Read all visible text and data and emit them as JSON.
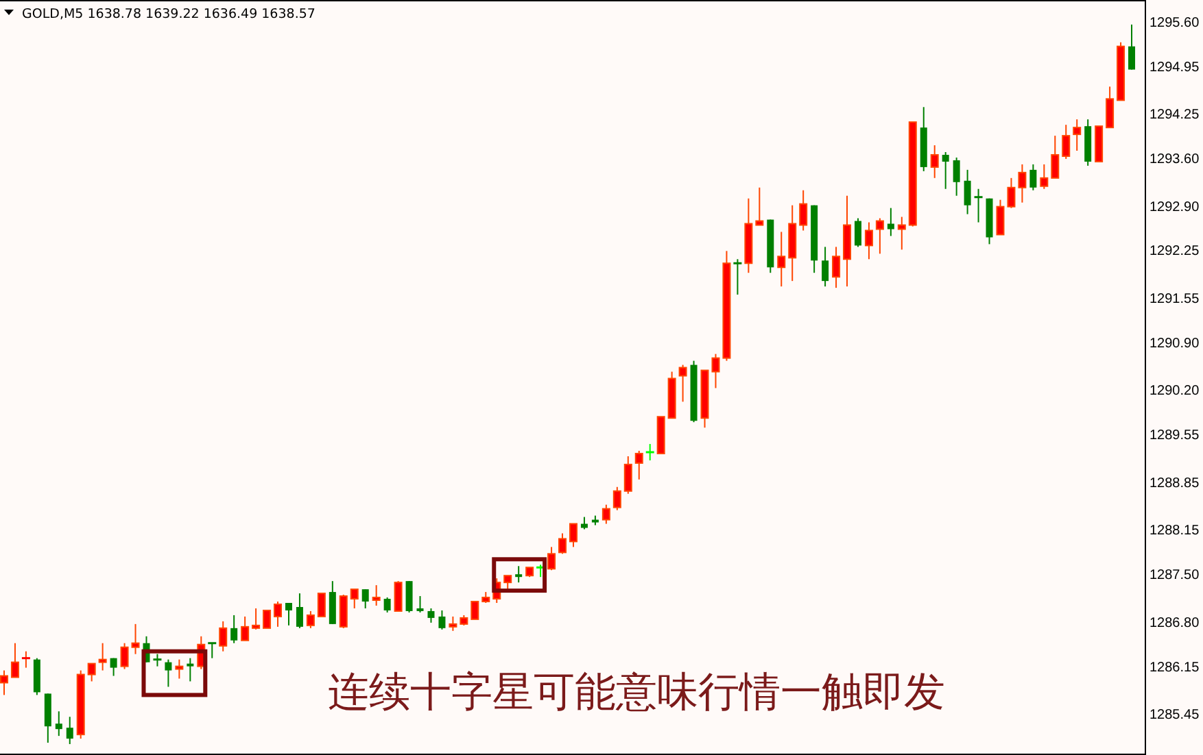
{
  "chart_data": {
    "type": "candlestick",
    "title": "GOLD,M5 1638.78 1639.22 1636.49 1638.57",
    "annotations": [
      "连续十字星可能意味行情一触即发"
    ],
    "tick_labels": "y",
    "ylim": [
      1284.87,
      1295.94
    ],
    "yticks": [
      {
        "value": 1295.6,
        "label": "1295.60"
      },
      {
        "value": 1294.95,
        "label": "1294.95"
      },
      {
        "value": 1294.25,
        "label": "1294.25"
      },
      {
        "value": 1293.6,
        "label": "1293.60"
      },
      {
        "value": 1292.9,
        "label": "1292.90"
      },
      {
        "value": 1292.25,
        "label": "1292.25"
      },
      {
        "value": 1291.55,
        "label": "1291.55"
      },
      {
        "value": 1290.9,
        "label": "1290.90"
      },
      {
        "value": 1290.2,
        "label": "1290.20"
      },
      {
        "value": 1289.55,
        "label": "1289.55"
      },
      {
        "value": 1288.85,
        "label": "1288.85"
      },
      {
        "value": 1288.15,
        "label": "1288.15"
      },
      {
        "value": 1287.5,
        "label": "1287.50"
      },
      {
        "value": 1286.8,
        "label": "1286.80"
      },
      {
        "value": 1286.15,
        "label": "1286.15"
      },
      {
        "value": 1285.45,
        "label": "1285.45"
      }
    ],
    "categories": [
      null,
      null,
      null,
      null,
      null,
      null,
      null,
      null,
      null,
      null,
      null,
      null,
      null,
      null,
      null,
      null,
      null,
      null,
      null,
      null,
      null,
      null,
      null,
      null,
      null,
      null,
      null,
      null,
      null,
      null,
      null,
      null,
      null,
      null,
      null,
      null,
      null,
      null,
      null,
      null,
      null,
      null,
      null,
      null,
      null,
      null,
      null,
      null,
      null,
      null,
      null,
      null,
      null,
      null,
      null,
      null,
      null,
      null,
      null,
      null,
      null,
      null,
      null,
      null,
      null,
      null,
      null,
      null,
      null,
      null,
      null,
      null,
      null,
      null,
      null,
      null,
      null,
      null,
      null,
      null,
      null,
      null,
      null,
      null,
      null,
      null,
      null,
      null,
      null,
      null,
      null,
      null,
      null,
      null,
      null,
      null,
      null,
      null,
      null,
      null,
      null,
      null,
      null,
      null
    ],
    "ohlc": [
      [
        1285.93,
        1286.11,
        1285.75,
        1286.03
      ],
      [
        1286.01,
        1286.51,
        1286.01,
        1286.23
      ],
      [
        1286.27,
        1286.39,
        1286.15,
        1286.29
      ],
      [
        1286.27,
        1286.29,
        1285.75,
        1285.79
      ],
      [
        1285.77,
        1285.77,
        1285.05,
        1285.29
      ],
      [
        1285.33,
        1285.51,
        1285.15,
        1285.25
      ],
      [
        1285.27,
        1285.43,
        1285.03,
        1285.11
      ],
      [
        1285.17,
        1286.11,
        1285.11,
        1286.05
      ],
      [
        1286.05,
        1286.21,
        1285.95,
        1286.21
      ],
      [
        1286.23,
        1286.51,
        1286.11,
        1286.27
      ],
      [
        1286.29,
        1286.29,
        1286.03,
        1286.15
      ],
      [
        1286.17,
        1286.51,
        1286.13,
        1286.45
      ],
      [
        1286.45,
        1286.79,
        1286.35,
        1286.51
      ],
      [
        1286.51,
        1286.61,
        1286.23,
        1286.23
      ],
      [
        1286.27,
        1286.35,
        1286.17,
        1286.25
      ],
      [
        1286.23,
        1286.27,
        1285.87,
        1286.11
      ],
      [
        1286.13,
        1286.27,
        1285.99,
        1286.17
      ],
      [
        1286.21,
        1286.29,
        1285.95,
        1286.17
      ],
      [
        1286.17,
        1286.61,
        1286.13,
        1286.49
      ],
      [
        1286.51,
        1286.51,
        1286.29,
        1286.49
      ],
      [
        1286.47,
        1286.83,
        1286.39,
        1286.73
      ],
      [
        1286.73,
        1286.92,
        1286.51,
        1286.55
      ],
      [
        1286.55,
        1286.9,
        1286.55,
        1286.75
      ],
      [
        1286.73,
        1287.02,
        1286.71,
        1286.77
      ],
      [
        1286.73,
        1286.99,
        1286.73,
        1286.99
      ],
      [
        1286.9,
        1287.12,
        1286.75,
        1287.08
      ],
      [
        1287.1,
        1287.1,
        1286.77,
        1286.99
      ],
      [
        1287.04,
        1287.24,
        1286.73,
        1286.75
      ],
      [
        1286.77,
        1286.98,
        1286.73,
        1286.92
      ],
      [
        1286.9,
        1287.24,
        1286.9,
        1287.24
      ],
      [
        1287.26,
        1287.42,
        1286.79,
        1286.79
      ],
      [
        1286.75,
        1287.22,
        1286.73,
        1287.2
      ],
      [
        1287.16,
        1287.3,
        1287.02,
        1287.3
      ],
      [
        1287.3,
        1287.3,
        1287.02,
        1287.12
      ],
      [
        1287.14,
        1287.36,
        1287.06,
        1287.18
      ],
      [
        1287.16,
        1287.18,
        1286.96,
        1286.99
      ],
      [
        1286.98,
        1287.42,
        1286.98,
        1287.4
      ],
      [
        1287.42,
        1287.42,
        1286.96,
        1286.98
      ],
      [
        1287.02,
        1287.2,
        1286.96,
        1286.98
      ],
      [
        1286.98,
        1287.02,
        1286.81,
        1286.88
      ],
      [
        1286.9,
        1286.99,
        1286.71,
        1286.73
      ],
      [
        1286.75,
        1286.9,
        1286.69,
        1286.79
      ],
      [
        1286.79,
        1286.92,
        1286.77,
        1286.88
      ],
      [
        1286.86,
        1287.12,
        1286.86,
        1287.12
      ],
      [
        1287.12,
        1287.26,
        1287.1,
        1287.18
      ],
      [
        1287.16,
        1287.46,
        1287.1,
        1287.4
      ],
      [
        1287.4,
        1287.5,
        1287.3,
        1287.5
      ],
      [
        1287.52,
        1287.64,
        1287.4,
        1287.48
      ],
      [
        1287.5,
        1287.62,
        1287.48,
        1287.62
      ],
      [
        1287.62,
        1287.66,
        1287.48,
        1287.62
      ],
      [
        1287.6,
        1287.92,
        1287.58,
        1287.82
      ],
      [
        1287.84,
        1288.12,
        1287.82,
        1288.04
      ],
      [
        1288.0,
        1288.26,
        1287.92,
        1288.26
      ],
      [
        1288.26,
        1288.36,
        1288.18,
        1288.2
      ],
      [
        1288.32,
        1288.38,
        1288.24,
        1288.28
      ],
      [
        1288.32,
        1288.54,
        1288.26,
        1288.48
      ],
      [
        1288.5,
        1288.8,
        1288.46,
        1288.74
      ],
      [
        1288.74,
        1289.25,
        1288.7,
        1289.13
      ],
      [
        1289.15,
        1289.33,
        1288.91,
        1289.29
      ],
      [
        1289.31,
        1289.43,
        1289.19,
        1289.31
      ],
      [
        1289.29,
        1289.83,
        1289.29,
        1289.83
      ],
      [
        1289.81,
        1290.49,
        1289.81,
        1290.39
      ],
      [
        1290.43,
        1290.59,
        1290.05,
        1290.55
      ],
      [
        1290.59,
        1290.65,
        1289.75,
        1289.77
      ],
      [
        1289.81,
        1290.51,
        1289.67,
        1290.51
      ],
      [
        1290.49,
        1290.75,
        1290.25,
        1290.69
      ],
      [
        1290.69,
        1292.26,
        1290.65,
        1292.08
      ],
      [
        1292.08,
        1292.14,
        1291.62,
        1292.06
      ],
      [
        1292.08,
        1293.03,
        1291.94,
        1292.66
      ],
      [
        1292.64,
        1293.19,
        1292.64,
        1292.7
      ],
      [
        1292.72,
        1292.72,
        1291.94,
        1292.02
      ],
      [
        1292.02,
        1292.54,
        1291.74,
        1292.18
      ],
      [
        1292.16,
        1292.93,
        1291.82,
        1292.66
      ],
      [
        1292.64,
        1293.15,
        1292.56,
        1292.95
      ],
      [
        1292.93,
        1292.93,
        1291.94,
        1292.12
      ],
      [
        1292.12,
        1292.32,
        1291.74,
        1291.82
      ],
      [
        1291.88,
        1292.32,
        1291.72,
        1292.18
      ],
      [
        1292.14,
        1293.07,
        1291.74,
        1292.64
      ],
      [
        1292.7,
        1292.74,
        1292.32,
        1292.34
      ],
      [
        1292.34,
        1292.68,
        1292.14,
        1292.56
      ],
      [
        1292.58,
        1292.74,
        1292.22,
        1292.7
      ],
      [
        1292.66,
        1292.89,
        1292.48,
        1292.58
      ],
      [
        1292.58,
        1292.76,
        1292.28,
        1292.64
      ],
      [
        1292.64,
        1294.15,
        1292.62,
        1294.15
      ],
      [
        1294.07,
        1294.37,
        1293.43,
        1293.49
      ],
      [
        1293.49,
        1293.81,
        1293.33,
        1293.67
      ],
      [
        1293.67,
        1293.71,
        1293.17,
        1293.57
      ],
      [
        1293.59,
        1293.63,
        1293.07,
        1293.27
      ],
      [
        1293.29,
        1293.45,
        1292.8,
        1292.93
      ],
      [
        1293.05,
        1293.17,
        1292.68,
        1293.03
      ],
      [
        1293.03,
        1293.03,
        1292.36,
        1292.46
      ],
      [
        1292.5,
        1293.01,
        1292.5,
        1292.91
      ],
      [
        1292.91,
        1293.33,
        1292.89,
        1293.19
      ],
      [
        1293.19,
        1293.53,
        1292.97,
        1293.41
      ],
      [
        1293.45,
        1293.53,
        1293.15,
        1293.19
      ],
      [
        1293.21,
        1293.53,
        1293.17,
        1293.33
      ],
      [
        1293.33,
        1293.95,
        1293.33,
        1293.67
      ],
      [
        1293.65,
        1294.11,
        1293.61,
        1293.95
      ],
      [
        1293.97,
        1294.19,
        1293.73,
        1294.07
      ],
      [
        1294.09,
        1294.19,
        1293.51,
        1293.57
      ],
      [
        1293.57,
        1294.09,
        1293.57,
        1294.09
      ],
      [
        1294.07,
        1294.67,
        1294.07,
        1294.49
      ],
      [
        1294.47,
        1295.32,
        1294.47,
        1295.26
      ],
      [
        1295.26,
        1295.58,
        1294.92,
        1294.92
      ]
    ],
    "colors": [
      "#ff0000",
      "#ff0000",
      "#ff0000",
      "#008000",
      "#008000",
      "#008000",
      "#008000",
      "#ff0000",
      "#ff0000",
      "#ff0000",
      "#008000",
      "#ff0000",
      "#ff0000",
      "#008000",
      "#008000",
      "#008000",
      "#ff0000",
      "#008000",
      "#ff0000",
      "#008000",
      "#ff0000",
      "#008000",
      "#ff0000",
      "#ff0000",
      "#ff0000",
      "#ff0000",
      "#008000",
      "#008000",
      "#ff0000",
      "#ff0000",
      "#008000",
      "#ff0000",
      "#ff0000",
      "#008000",
      "#ff0000",
      "#008000",
      "#ff0000",
      "#008000",
      "#008000",
      "#008000",
      "#008000",
      "#ff0000",
      "#ff0000",
      "#ff0000",
      "#ff0000",
      "#ff0000",
      "#ff0000",
      "#008000",
      "#ff0000",
      "#00ff00",
      "#ff0000",
      "#ff0000",
      "#ff0000",
      "#008000",
      "#008000",
      "#ff0000",
      "#ff0000",
      "#ff0000",
      "#ff0000",
      "#00ff00",
      "#ff0000",
      "#ff0000",
      "#ff0000",
      "#008000",
      "#ff0000",
      "#ff0000",
      "#ff0000",
      "#008000",
      "#ff0000",
      "#ff0000",
      "#008000",
      "#ff0000",
      "#ff0000",
      "#ff0000",
      "#008000",
      "#008000",
      "#ff0000",
      "#ff0000",
      "#008000",
      "#ff0000",
      "#ff0000",
      "#008000",
      "#ff0000",
      "#ff0000",
      "#008000",
      "#ff0000",
      "#008000",
      "#008000",
      "#008000",
      "#008000",
      "#008000",
      "#ff0000",
      "#ff0000",
      "#ff0000",
      "#008000",
      "#ff0000",
      "#ff0000",
      "#ff0000",
      "#ff0000",
      "#008000",
      "#ff0000",
      "#ff0000",
      "#ff0000",
      "#008000"
    ]
  }
}
